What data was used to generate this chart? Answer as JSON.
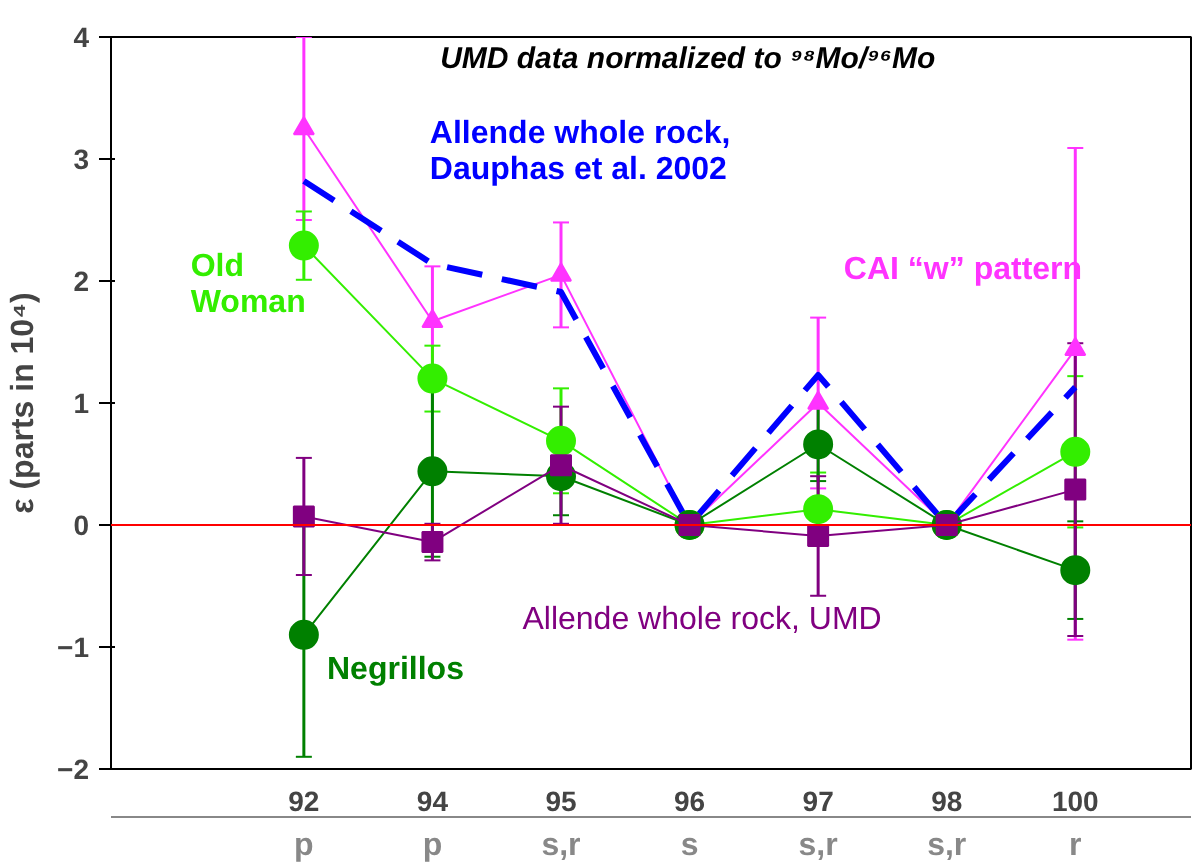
{
  "chart_data": {
    "type": "line",
    "title": "UMD data normalized to ⁹⁸Mo/⁹⁶Mo",
    "ylabel": "ε (parts in 10⁴)",
    "categories": [
      "92",
      "94",
      "95",
      "96",
      "97",
      "98",
      "100"
    ],
    "series": [
      {
        "name": "CAI “w” pattern",
        "color": "#ff33ff",
        "marker": "triangle",
        "values": [
          3.25,
          1.67,
          2.05,
          0,
          1.0,
          0,
          1.44
        ],
        "errors": [
          0.75,
          0.45,
          0.43,
          null,
          0.7,
          null,
          [
            -0.94,
            3.09
          ]
        ]
      },
      {
        "name": "Allende whole rock, Dauphas et al. 2002",
        "color": "#0000ff",
        "marker": "none",
        "line_style": "dashed",
        "values": [
          2.82,
          2.14,
          1.91,
          0,
          1.23,
          0,
          1.13
        ]
      },
      {
        "name": "Old Woman",
        "color": "#33ee00",
        "marker": "circle",
        "values": [
          2.29,
          1.2,
          0.69,
          0,
          0.13,
          0,
          0.6
        ],
        "errors": [
          0.28,
          0.27,
          0.43,
          null,
          0.3,
          null,
          0.62
        ]
      },
      {
        "name": "Negrillos",
        "color": "#008000",
        "marker": "circle",
        "values": [
          -0.9,
          0.44,
          0.4,
          0,
          0.66,
          0,
          -0.37
        ],
        "errors": [
          1.0,
          0.7,
          0.32,
          null,
          0.3,
          null,
          0.4
        ]
      },
      {
        "name": "Allende whole rock, UMD",
        "color": "#800080",
        "marker": "square",
        "values": [
          0.07,
          -0.14,
          0.49,
          0,
          -0.09,
          0,
          0.29
        ],
        "errors": [
          0.48,
          0.15,
          0.48,
          null,
          0.49,
          null,
          1.2
        ]
      }
    ],
    "annotations": [
      "p",
      "p",
      "s,r",
      "s",
      "s,r",
      "s,r",
      "r"
    ],
    "ref_lines": [
      {
        "axis": "y",
        "value": 0,
        "color": "#ff0000"
      }
    ],
    "ylim": [
      -2,
      4
    ],
    "yticks": [
      -2,
      -1,
      0,
      1,
      2,
      3,
      4
    ],
    "grid": false,
    "legend": false
  }
}
